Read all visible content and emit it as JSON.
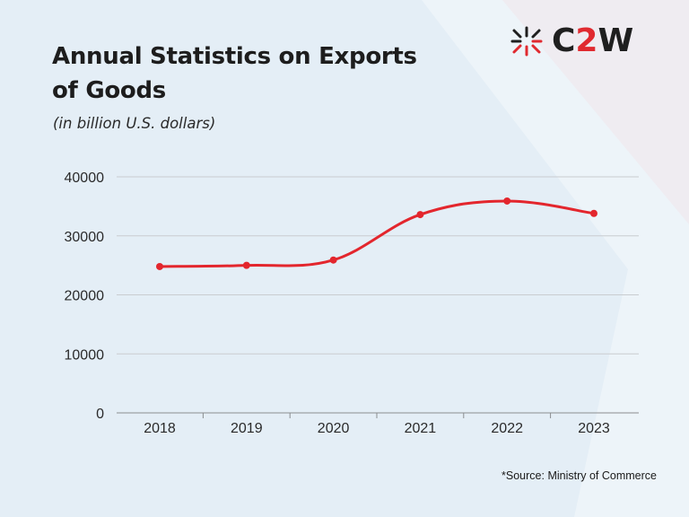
{
  "header": {
    "title": "Annual Statistics on Exports of Goods",
    "subtitle": "(in billion U.S. dollars)"
  },
  "logo": {
    "text_main": "C",
    "text_accent": "2",
    "text_end": "W",
    "icon": "starburst-logo-icon"
  },
  "footer": {
    "source": "*Source: Ministry of Commerce"
  },
  "colors": {
    "line": "#e3262d",
    "accent": "#e02a30",
    "grid": "#c9ccd0",
    "text": "#1d1d1d"
  },
  "chart_data": {
    "type": "line",
    "title": "Annual Statistics on Exports of Goods",
    "subtitle": "(in billion U.S. dollars)",
    "xlabel": "",
    "ylabel": "",
    "categories": [
      "2018",
      "2019",
      "2020",
      "2021",
      "2022",
      "2023"
    ],
    "series": [
      {
        "values": [
          24800,
          25000,
          25900,
          33600,
          35900,
          33800
        ]
      }
    ],
    "ylim": [
      0,
      40000
    ],
    "yticks": [
      "0",
      "10000",
      "20000",
      "30000",
      "40000"
    ],
    "grid": true,
    "smooth": true
  }
}
